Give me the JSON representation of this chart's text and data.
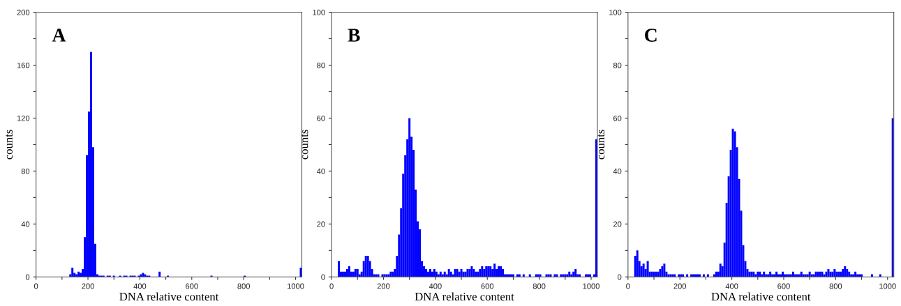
{
  "chart_data": [
    {
      "type": "histogram",
      "title": "A",
      "xlabel": "DNA relative content",
      "ylabel": "counts",
      "color": "#0000ff",
      "bins": [
        0,
        8,
        16,
        24,
        32,
        40,
        48,
        56,
        64,
        72,
        80,
        88,
        96,
        104,
        112,
        120,
        128,
        136,
        144,
        152,
        160,
        168,
        176,
        184,
        192,
        200,
        208,
        216,
        224,
        232,
        240,
        248,
        256,
        264,
        272,
        280,
        288,
        296,
        304,
        312,
        320,
        328,
        336,
        344,
        352,
        360,
        368,
        376,
        384,
        392,
        400,
        408,
        416,
        424,
        432,
        440,
        448,
        456,
        464,
        472,
        480,
        488,
        496,
        504,
        512,
        520,
        528,
        536,
        544,
        552,
        560,
        568,
        576,
        584,
        592,
        600,
        608,
        616,
        624,
        632,
        640,
        648,
        656,
        664,
        672,
        680,
        688,
        696,
        704,
        712,
        720,
        728,
        736,
        744,
        752,
        760,
        768,
        776,
        784,
        792,
        800,
        808,
        816,
        824,
        832,
        840,
        848,
        856,
        864,
        872,
        880,
        888,
        896,
        904,
        912,
        920,
        928,
        936,
        944,
        952,
        960,
        968,
        976,
        984,
        992,
        1000,
        1008,
        1016,
        1024
      ],
      "values": [
        0,
        0,
        0,
        0,
        0,
        0,
        0,
        0,
        0,
        0,
        0,
        0,
        0,
        0,
        0,
        0,
        2,
        7,
        3,
        2,
        4,
        3,
        6,
        30,
        92,
        125,
        170,
        98,
        25,
        2,
        1,
        1,
        1,
        0,
        1,
        1,
        0,
        1,
        0,
        0,
        1,
        0,
        1,
        1,
        0,
        1,
        1,
        1,
        0,
        1,
        2,
        3,
        2,
        1,
        1,
        0,
        0,
        0,
        0,
        4,
        0,
        0,
        0,
        1,
        0,
        0,
        0,
        0,
        0,
        0,
        0,
        0,
        0,
        0,
        0,
        0,
        0,
        0,
        0,
        0,
        0,
        0,
        0,
        0,
        1,
        0,
        0,
        0,
        0,
        0,
        0,
        0,
        0,
        0,
        0,
        0,
        0,
        0,
        0,
        0,
        1,
        0,
        0,
        0,
        0,
        0,
        0,
        0,
        0,
        0,
        0,
        0,
        0,
        0,
        0,
        0,
        0,
        0,
        0,
        0,
        0,
        0,
        0,
        0,
        0,
        0,
        0,
        7
      ],
      "xlim": [
        0,
        1024
      ],
      "ylim": [
        0,
        200
      ],
      "xticks": [
        0,
        {
          "value": 100,
          "label": null
        },
        200,
        {
          "value": 300,
          "label": null
        },
        400,
        {
          "value": 500,
          "label": null
        },
        600,
        {
          "value": 700,
          "label": null
        },
        800,
        {
          "value": 900,
          "label": null
        },
        1000
      ],
      "yticks": [
        0,
        {
          "value": 20,
          "label": null
        },
        40,
        {
          "value": 60,
          "label": null
        },
        80,
        {
          "value": 100,
          "label": null
        },
        120,
        {
          "value": 140,
          "label": null
        },
        160,
        {
          "value": 180,
          "label": null
        },
        200
      ]
    },
    {
      "type": "histogram",
      "title": "B",
      "xlabel": "DNA relative content",
      "ylabel": "counts",
      "color": "#0000ff",
      "bins": [
        0,
        8,
        16,
        24,
        32,
        40,
        48,
        56,
        64,
        72,
        80,
        88,
        96,
        104,
        112,
        120,
        128,
        136,
        144,
        152,
        160,
        168,
        176,
        184,
        192,
        200,
        208,
        216,
        224,
        232,
        240,
        248,
        256,
        264,
        272,
        280,
        288,
        296,
        304,
        312,
        320,
        328,
        336,
        344,
        352,
        360,
        368,
        376,
        384,
        392,
        400,
        408,
        416,
        424,
        432,
        440,
        448,
        456,
        464,
        472,
        480,
        488,
        496,
        504,
        512,
        520,
        528,
        536,
        544,
        552,
        560,
        568,
        576,
        584,
        592,
        600,
        608,
        616,
        624,
        632,
        640,
        648,
        656,
        664,
        672,
        680,
        688,
        696,
        704,
        712,
        720,
        728,
        736,
        744,
        752,
        760,
        768,
        776,
        784,
        792,
        800,
        808,
        816,
        824,
        832,
        840,
        848,
        856,
        864,
        872,
        880,
        888,
        896,
        904,
        912,
        920,
        928,
        936,
        944,
        952,
        960,
        968,
        976,
        984,
        992,
        1000,
        1008,
        1016,
        1024
      ],
      "values": [
        0,
        0,
        0,
        6,
        2,
        2,
        2,
        3,
        4,
        2,
        2,
        3,
        3,
        1,
        2,
        6,
        8,
        8,
        6,
        3,
        1,
        1,
        1,
        0,
        1,
        1,
        1,
        1,
        2,
        2,
        3,
        8,
        16,
        26,
        39,
        46,
        52,
        60,
        53,
        48,
        33,
        21,
        18,
        6,
        4,
        3,
        2,
        3,
        2,
        3,
        2,
        1,
        2,
        1,
        2,
        1,
        3,
        2,
        1,
        3,
        3,
        2,
        3,
        2,
        2,
        3,
        3,
        4,
        3,
        2,
        2,
        3,
        4,
        3,
        4,
        4,
        4,
        3,
        5,
        3,
        4,
        4,
        3,
        1,
        1,
        1,
        1,
        1,
        0,
        1,
        1,
        0,
        1,
        0,
        0,
        1,
        0,
        0,
        1,
        1,
        1,
        0,
        0,
        1,
        1,
        1,
        0,
        1,
        1,
        0,
        1,
        1,
        1,
        1,
        2,
        1,
        2,
        3,
        1,
        1,
        0,
        0,
        1,
        1,
        1,
        0,
        1,
        52
      ],
      "xlim": [
        0,
        1024
      ],
      "ylim": [
        0,
        100
      ],
      "xticks": [
        0,
        {
          "value": 100,
          "label": null
        },
        200,
        {
          "value": 300,
          "label": null
        },
        400,
        {
          "value": 500,
          "label": null
        },
        600,
        {
          "value": 700,
          "label": null
        },
        800,
        {
          "value": 900,
          "label": null
        },
        1000
      ],
      "yticks": [
        0,
        {
          "value": 10,
          "label": null
        },
        20,
        {
          "value": 30,
          "label": null
        },
        40,
        {
          "value": 50,
          "label": null
        },
        60,
        {
          "value": 70,
          "label": null
        },
        80,
        {
          "value": 90,
          "label": null
        },
        100
      ]
    },
    {
      "type": "histogram",
      "title": "C",
      "xlabel": "DNA relative content",
      "ylabel": "counts",
      "color": "#0000ff",
      "bins": [
        0,
        8,
        16,
        24,
        32,
        40,
        48,
        56,
        64,
        72,
        80,
        88,
        96,
        104,
        112,
        120,
        128,
        136,
        144,
        152,
        160,
        168,
        176,
        184,
        192,
        200,
        208,
        216,
        224,
        232,
        240,
        248,
        256,
        264,
        272,
        280,
        288,
        296,
        304,
        312,
        320,
        328,
        336,
        344,
        352,
        360,
        368,
        376,
        384,
        392,
        400,
        408,
        416,
        424,
        432,
        440,
        448,
        456,
        464,
        472,
        480,
        488,
        496,
        504,
        512,
        520,
        528,
        536,
        544,
        552,
        560,
        568,
        576,
        584,
        592,
        600,
        608,
        616,
        624,
        632,
        640,
        648,
        656,
        664,
        672,
        680,
        688,
        696,
        704,
        712,
        720,
        728,
        736,
        744,
        752,
        760,
        768,
        776,
        784,
        792,
        800,
        808,
        816,
        824,
        832,
        840,
        848,
        856,
        864,
        872,
        880,
        888,
        896,
        904,
        912,
        920,
        928,
        936,
        944,
        952,
        960,
        968,
        976,
        984,
        992,
        1000,
        1008,
        1016,
        1024
      ],
      "values": [
        0,
        0,
        0,
        8,
        10,
        6,
        4,
        5,
        3,
        6,
        2,
        2,
        2,
        2,
        2,
        3,
        4,
        5,
        2,
        1,
        1,
        1,
        1,
        0,
        1,
        1,
        1,
        0,
        1,
        0,
        1,
        1,
        1,
        1,
        1,
        0,
        1,
        0,
        1,
        0,
        0,
        1,
        2,
        2,
        5,
        4,
        13,
        28,
        38,
        48,
        56,
        55,
        49,
        37,
        25,
        12,
        6,
        3,
        2,
        2,
        2,
        1,
        2,
        2,
        1,
        2,
        1,
        1,
        2,
        1,
        1,
        2,
        1,
        1,
        2,
        1,
        1,
        1,
        1,
        2,
        1,
        1,
        1,
        2,
        1,
        1,
        1,
        2,
        1,
        1,
        2,
        2,
        2,
        2,
        1,
        2,
        3,
        2,
        2,
        3,
        2,
        2,
        2,
        3,
        4,
        3,
        2,
        1,
        1,
        2,
        1,
        1,
        1,
        0,
        0,
        0,
        0,
        1,
        0,
        0,
        0,
        1,
        0,
        0,
        0,
        0,
        0,
        60
      ],
      "xlim": [
        0,
        1024
      ],
      "ylim": [
        0,
        100
      ],
      "xticks": [
        0,
        {
          "value": 100,
          "label": null
        },
        200,
        {
          "value": 300,
          "label": null
        },
        400,
        {
          "value": 500,
          "label": null
        },
        600,
        {
          "value": 700,
          "label": null
        },
        800,
        {
          "value": 900,
          "label": null
        },
        1000
      ],
      "yticks": [
        0,
        {
          "value": 10,
          "label": null
        },
        20,
        {
          "value": 30,
          "label": null
        },
        40,
        {
          "value": 50,
          "label": null
        },
        60,
        {
          "value": 70,
          "label": null
        },
        80,
        {
          "value": 90,
          "label": null
        },
        100
      ]
    }
  ]
}
